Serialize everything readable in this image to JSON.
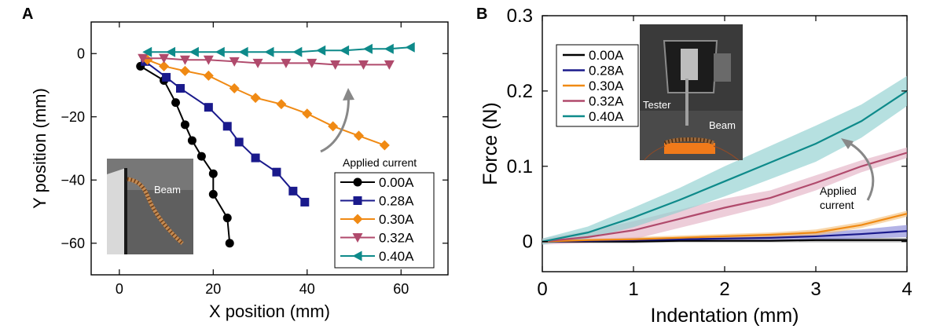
{
  "chart_data": [
    {
      "panel": "A",
      "type": "line",
      "xlabel": "X position (mm)",
      "ylabel": "Y position (mm)",
      "xlim": [
        -6,
        70
      ],
      "ylim": [
        -70,
        10
      ],
      "xticks": [
        0,
        20,
        40,
        60
      ],
      "yticks": [
        0,
        -20,
        -40,
        -60
      ],
      "xtick_labels": [
        "0",
        "20",
        "40",
        "60"
      ],
      "ytick_labels": [
        "0",
        "−20",
        "−40",
        "−60"
      ],
      "legend_title": "Applied current",
      "series": [
        {
          "name": "0.00A",
          "color": "#000000",
          "marker": "circle",
          "x": [
            4.5,
            9.5,
            12,
            14,
            15.5,
            17.5,
            20,
            20,
            23,
            23.5
          ],
          "y": [
            -4,
            -8.5,
            -15.5,
            -22.5,
            -27.5,
            -32.5,
            -38,
            -44.5,
            -52,
            -60
          ]
        },
        {
          "name": "0.28A",
          "color": "#1a1a8c",
          "marker": "square",
          "x": [
            5.5,
            10,
            13,
            19,
            23,
            25.5,
            29,
            33.5,
            37,
            39.5
          ],
          "y": [
            -2.5,
            -7.5,
            -11,
            -17,
            -23,
            -28,
            -33,
            -37.5,
            -43.5,
            -47
          ]
        },
        {
          "name": "0.30A",
          "color": "#f08a14",
          "marker": "diamond",
          "x": [
            6,
            9.5,
            14,
            19,
            24.5,
            29,
            34.5,
            40,
            45.5,
            51,
            56.5
          ],
          "y": [
            -2,
            -4,
            -5.5,
            -7,
            -11,
            -14,
            -16,
            -19,
            -23,
            -26,
            -29
          ]
        },
        {
          "name": "0.32A",
          "color": "#b04a6c",
          "marker": "triangle-down",
          "x": [
            5,
            9.5,
            14,
            19,
            24.5,
            29.5,
            35.5,
            41,
            46,
            52,
            57.5
          ],
          "y": [
            -1.5,
            -1.5,
            -2,
            -2,
            -2.5,
            -3,
            -3,
            -3,
            -3.5,
            -3.5,
            -3.5
          ]
        },
        {
          "name": "0.40A",
          "color": "#0e8a8a",
          "marker": "triangle-left",
          "x": [
            6,
            11,
            16,
            21.5,
            26.5,
            32,
            38,
            43,
            48,
            53,
            57.5,
            62
          ],
          "y": [
            0.5,
            0.5,
            0.5,
            0.5,
            0.5,
            0.5,
            0.5,
            1,
            1,
            1.5,
            1.5,
            2
          ]
        }
      ],
      "annotations": [
        "Applied current"
      ],
      "inset_label": "Beam"
    },
    {
      "panel": "B",
      "type": "line",
      "xlabel": "Indentation (mm)",
      "ylabel": "Force (N)",
      "xlim": [
        0,
        4
      ],
      "ylim": [
        -0.04,
        0.3
      ],
      "xticks": [
        0,
        1,
        2,
        3,
        4
      ],
      "yticks": [
        0,
        0.1,
        0.2,
        0.3
      ],
      "xtick_labels": [
        "0",
        "1",
        "2",
        "3",
        "4"
      ],
      "ytick_labels": [
        "0",
        "0.1",
        "0.2",
        "0.3"
      ],
      "series": [
        {
          "name": "0.00A",
          "color": "#000000",
          "band_color": "#9a9a9a",
          "x": [
            0,
            0.5,
            1,
            1.5,
            2,
            2.5,
            3,
            3.5,
            4
          ],
          "y": [
            0,
            0,
            0,
            0.001,
            0.001,
            0.001,
            0.002,
            0.002,
            0.002
          ],
          "band": [
            0.002,
            0.002,
            0.002,
            0.002,
            0.002,
            0.002,
            0.003,
            0.003,
            0.003
          ]
        },
        {
          "name": "0.28A",
          "color": "#1a1a8c",
          "band_color": "#8a8ad8",
          "x": [
            0,
            0.5,
            1,
            1.5,
            2,
            2.5,
            3,
            3.5,
            4
          ],
          "y": [
            0,
            0.001,
            0.002,
            0.003,
            0.004,
            0.005,
            0.007,
            0.01,
            0.014
          ],
          "band": [
            0.002,
            0.002,
            0.003,
            0.003,
            0.003,
            0.004,
            0.005,
            0.006,
            0.008
          ]
        },
        {
          "name": "0.30A",
          "color": "#f08a14",
          "band_color": "#f5c27e",
          "x": [
            0,
            0.5,
            1,
            1.5,
            2,
            2.5,
            3,
            3.5,
            4
          ],
          "y": [
            0,
            0.002,
            0.003,
            0.005,
            0.007,
            0.009,
            0.012,
            0.022,
            0.037
          ],
          "band": [
            0.002,
            0.002,
            0.003,
            0.003,
            0.003,
            0.003,
            0.004,
            0.004,
            0.004
          ]
        },
        {
          "name": "0.32A",
          "color": "#b04a6c",
          "band_color": "#e4b2c4",
          "x": [
            0,
            0.5,
            1,
            1.5,
            2,
            2.5,
            3,
            3.5,
            4
          ],
          "y": [
            0,
            0.006,
            0.015,
            0.03,
            0.045,
            0.058,
            0.078,
            0.1,
            0.118
          ],
          "band": [
            0.004,
            0.008,
            0.012,
            0.012,
            0.012,
            0.01,
            0.01,
            0.008,
            0.007
          ]
        },
        {
          "name": "0.40A",
          "color": "#0e8a8a",
          "band_color": "#8fd0d0",
          "x": [
            0,
            0.5,
            1,
            1.5,
            2,
            2.5,
            3,
            3.5,
            4
          ],
          "y": [
            0,
            0.012,
            0.032,
            0.055,
            0.08,
            0.105,
            0.13,
            0.16,
            0.2
          ],
          "band": [
            0.004,
            0.008,
            0.013,
            0.016,
            0.02,
            0.022,
            0.024,
            0.022,
            0.02
          ]
        }
      ],
      "annotations": [
        "Applied",
        "current"
      ],
      "inset_labels": [
        "Tester",
        "Beam"
      ]
    }
  ]
}
